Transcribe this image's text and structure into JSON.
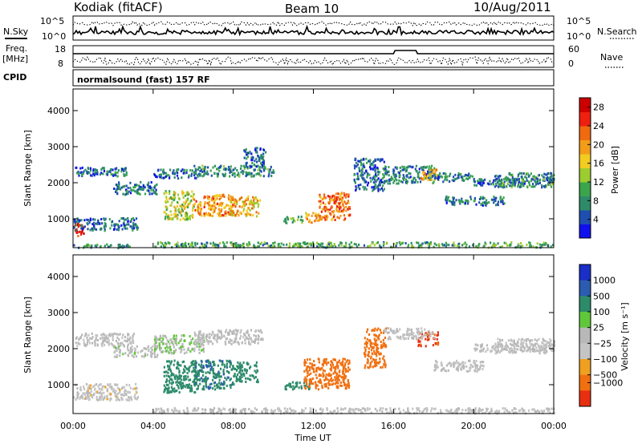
{
  "header": {
    "station": "Kodiak (fitACF)",
    "beam": "Beam 10",
    "date": "10/Aug/2011"
  },
  "status_panels": {
    "nsky_label": "N.Sky",
    "nsearch_label": "N.Search",
    "noise_ticks_left": [
      "10^5",
      "10^0"
    ],
    "noise_ticks_right": [
      "10^5",
      "10^0"
    ],
    "freq_label_1": "Freq.",
    "freq_label_2": "[MHz]",
    "freq_ticks": [
      "18",
      "8"
    ],
    "nave_label": "Nave",
    "nave_ticks": [
      "60",
      "0"
    ],
    "cpid_label": "CPID",
    "cpid_value": "normalsound (fast) 157 RF"
  },
  "chart_data": [
    {
      "type": "heatmap",
      "name": "power",
      "ylabel": "Slant Range [km]",
      "xlabel": "",
      "xlim": [
        0,
        24
      ],
      "ylim": [
        200,
        4600
      ],
      "yticks": [
        "1000",
        "2000",
        "3000",
        "4000"
      ],
      "colorbar": {
        "label": "Power [dB]",
        "ticks": [
          "4",
          "8",
          "12",
          "16",
          "20",
          "24",
          "28"
        ],
        "range": [
          0,
          30
        ],
        "colors": [
          "#1010ee",
          "#1e4fb0",
          "#2e8b6a",
          "#3aa54c",
          "#9ccc30",
          "#f2cc20",
          "#f39c1a",
          "#f06a10",
          "#ee2010",
          "#cc0000"
        ]
      },
      "regions": [
        {
          "x": [
            0.0,
            2.8
          ],
          "y": [
            220,
            330
          ],
          "v": 8
        },
        {
          "x": [
            0.0,
            0.6
          ],
          "y": [
            550,
            900
          ],
          "v": 26
        },
        {
          "x": [
            0.0,
            3.2
          ],
          "y": [
            700,
            1050
          ],
          "v": 6
        },
        {
          "x": [
            0.1,
            2.8
          ],
          "y": [
            2200,
            2450
          ],
          "v": 6
        },
        {
          "x": [
            2.0,
            4.2
          ],
          "y": [
            1700,
            2050
          ],
          "v": 7
        },
        {
          "x": [
            4.0,
            6.5
          ],
          "y": [
            2150,
            2400
          ],
          "v": 6
        },
        {
          "x": [
            6.0,
            10.0
          ],
          "y": [
            2200,
            2500
          ],
          "v": 8
        },
        {
          "x": [
            8.5,
            9.6
          ],
          "y": [
            2450,
            3000
          ],
          "v": 6
        },
        {
          "x": [
            4.5,
            6.0
          ],
          "y": [
            1000,
            1800
          ],
          "v": 14
        },
        {
          "x": [
            6.0,
            8.0
          ],
          "y": [
            1100,
            1700
          ],
          "v": 20
        },
        {
          "x": [
            7.8,
            9.3
          ],
          "y": [
            1100,
            1650
          ],
          "v": 18
        },
        {
          "x": [
            10.5,
            11.5
          ],
          "y": [
            900,
            1100
          ],
          "v": 10
        },
        {
          "x": [
            11.5,
            12.3
          ],
          "y": [
            900,
            1200
          ],
          "v": 18
        },
        {
          "x": [
            12.2,
            13.8
          ],
          "y": [
            1000,
            1750
          ],
          "v": 22
        },
        {
          "x": [
            14.0,
            15.5
          ],
          "y": [
            1800,
            2700
          ],
          "v": 6
        },
        {
          "x": [
            15.5,
            18.0
          ],
          "y": [
            2000,
            2500
          ],
          "v": 7
        },
        {
          "x": [
            17.3,
            18.2
          ],
          "y": [
            2100,
            2400
          ],
          "v": 18
        },
        {
          "x": [
            18.0,
            20.0
          ],
          "y": [
            2050,
            2300
          ],
          "v": 7
        },
        {
          "x": [
            18.5,
            21.5
          ],
          "y": [
            1400,
            1650
          ],
          "v": 7
        },
        {
          "x": [
            20.0,
            24.0
          ],
          "y": [
            1950,
            2150
          ],
          "v": 6
        },
        {
          "x": [
            21.0,
            24.0
          ],
          "y": [
            1900,
            2300
          ],
          "v": 8
        },
        {
          "x": [
            4.0,
            24.0
          ],
          "y": [
            230,
            380
          ],
          "v": 10
        }
      ]
    },
    {
      "type": "heatmap",
      "name": "velocity",
      "ylabel": "Slant Range [km]",
      "xlabel": "Time UT",
      "xlim": [
        0,
        24
      ],
      "ylim": [
        200,
        4600
      ],
      "yticks": [
        "1000",
        "2000",
        "3000",
        "4000"
      ],
      "xticks": [
        "00:00",
        "04:00",
        "08:00",
        "12:00",
        "16:00",
        "20:00",
        "00:00"
      ],
      "colorbar": {
        "label": "Velocity [m s⁻¹]",
        "ticks": [
          "1000",
          "500",
          "100",
          "25",
          "−25",
          "−100",
          "−500",
          "−1000"
        ],
        "colors": [
          "#1a2ec8",
          "#2c5cb0",
          "#2d8b6a",
          "#5fc83a",
          "#b8b8b8",
          "#c4c4c4",
          "#f0a020",
          "#f07010",
          "#e83010"
        ]
      },
      "regions": [
        {
          "x": [
            0.0,
            3.2
          ],
          "y": [
            600,
            1050
          ],
          "v": -10
        },
        {
          "x": [
            0.1,
            3.0
          ],
          "y": [
            2100,
            2450
          ],
          "v": 5
        },
        {
          "x": [
            2.0,
            4.2
          ],
          "y": [
            1800,
            2100
          ],
          "v": 10
        },
        {
          "x": [
            4.0,
            6.5
          ],
          "y": [
            1900,
            2400
          ],
          "v": 20
        },
        {
          "x": [
            6.0,
            9.5
          ],
          "y": [
            2150,
            2550
          ],
          "v": 5
        },
        {
          "x": [
            4.5,
            6.2
          ],
          "y": [
            800,
            1700
          ],
          "v": 300
        },
        {
          "x": [
            6.0,
            8.0
          ],
          "y": [
            900,
            1700
          ],
          "v": 400
        },
        {
          "x": [
            8.0,
            9.2
          ],
          "y": [
            1100,
            1650
          ],
          "v": 300
        },
        {
          "x": [
            10.5,
            11.8
          ],
          "y": [
            900,
            1100
          ],
          "v": 200
        },
        {
          "x": [
            11.5,
            13.8
          ],
          "y": [
            900,
            1750
          ],
          "v": -300
        },
        {
          "x": [
            14.5,
            15.6
          ],
          "y": [
            1500,
            2600
          ],
          "v": -200
        },
        {
          "x": [
            17.2,
            18.2
          ],
          "y": [
            2100,
            2500
          ],
          "v": -600
        },
        {
          "x": [
            15.5,
            18.0
          ],
          "y": [
            2300,
            2600
          ],
          "v": 0
        },
        {
          "x": [
            18.0,
            20.5
          ],
          "y": [
            1400,
            1700
          ],
          "v": 0
        },
        {
          "x": [
            20.0,
            24.0
          ],
          "y": [
            1950,
            2150
          ],
          "v": 5
        },
        {
          "x": [
            21.0,
            24.0
          ],
          "y": [
            1900,
            2300
          ],
          "v": -5
        },
        {
          "x": [
            4.0,
            24.0
          ],
          "y": [
            230,
            380
          ],
          "v": 0
        }
      ]
    }
  ]
}
